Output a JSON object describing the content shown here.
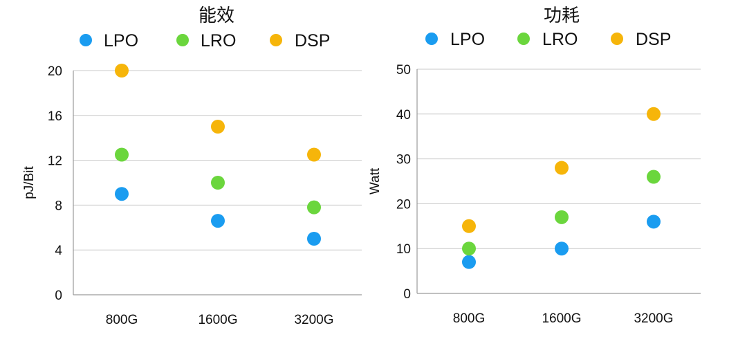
{
  "colors": {
    "LPO": "#1a9cf0",
    "LRO": "#6bd63d",
    "DSP": "#f6b50a",
    "grid": "#c8c8c8",
    "axis": "#9a9a9a",
    "text": "#111111"
  },
  "chart_data": [
    {
      "type": "scatter",
      "title": "能效",
      "xlabel": "",
      "ylabel": "pJ/Bit",
      "categories": [
        "800G",
        "1600G",
        "3200G"
      ],
      "yticks": [
        0,
        4,
        8,
        12,
        16,
        20
      ],
      "ylim": [
        0,
        20
      ],
      "grid": true,
      "legend": "top",
      "series": [
        {
          "name": "LPO",
          "values": [
            9,
            6.6,
            5
          ]
        },
        {
          "name": "LRO",
          "values": [
            12.5,
            10,
            7.8
          ]
        },
        {
          "name": "DSP",
          "values": [
            20,
            15,
            12.5
          ]
        }
      ]
    },
    {
      "type": "scatter",
      "title": "功耗",
      "xlabel": "",
      "ylabel": "Watt",
      "categories": [
        "800G",
        "1600G",
        "3200G"
      ],
      "yticks": [
        0,
        10,
        20,
        30,
        40,
        50
      ],
      "ylim": [
        0,
        50
      ],
      "grid": true,
      "legend": "top",
      "series": [
        {
          "name": "LPO",
          "values": [
            7,
            10,
            16
          ]
        },
        {
          "name": "LRO",
          "values": [
            10,
            17,
            26
          ]
        },
        {
          "name": "DSP",
          "values": [
            15,
            28,
            40
          ]
        }
      ]
    }
  ]
}
